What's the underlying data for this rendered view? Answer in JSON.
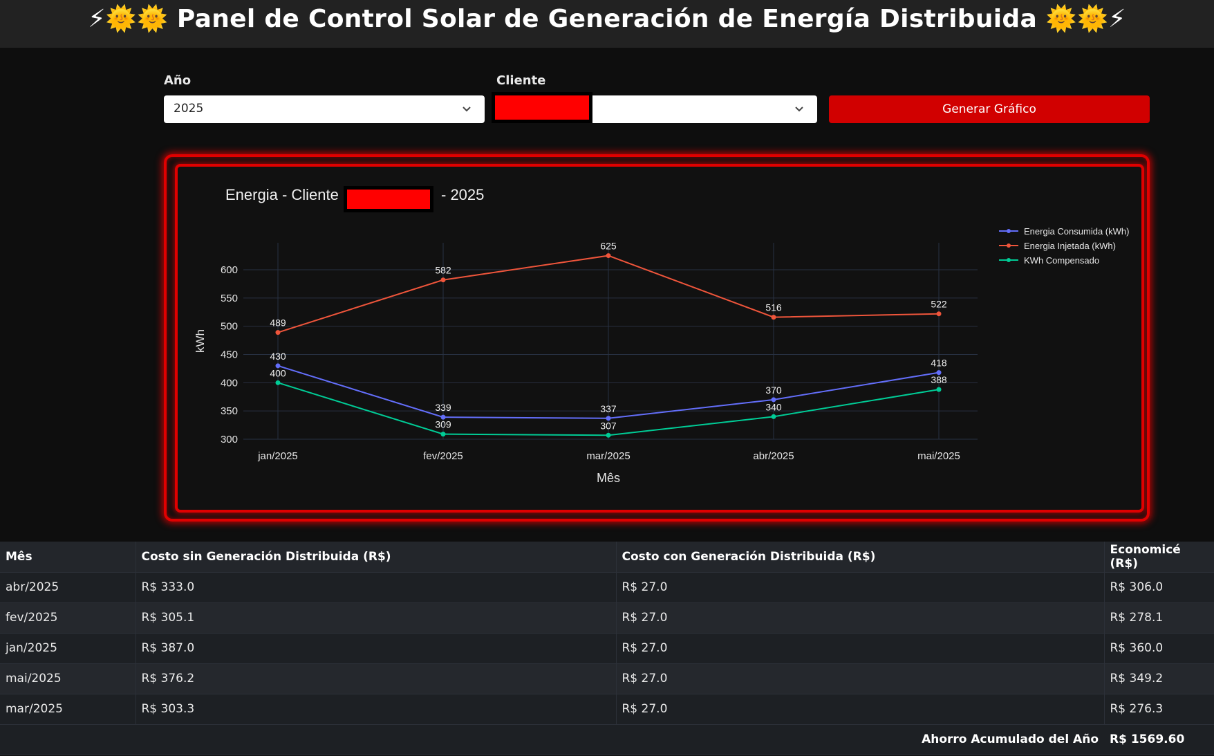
{
  "header": {
    "title": "⚡🌞🌞 Panel de Control Solar de Generación de Energía Distribuida 🌞🌞⚡"
  },
  "filters": {
    "year_label": "Año",
    "year_value": "2025",
    "client_label": "Cliente",
    "client_value": "",
    "generate_button": "Generar Gráfico"
  },
  "colors": {
    "accent_red": "#d10000",
    "consumed": "#636efa",
    "injected": "#ef553b",
    "compensated": "#00cc96"
  },
  "chart_data": {
    "type": "line",
    "title_prefix": "Energia - Cliente",
    "title_suffix": "- 2025",
    "xlabel": "Mês",
    "ylabel": "kWh",
    "categories": [
      "jan/2025",
      "fev/2025",
      "mar/2025",
      "abr/2025",
      "mai/2025"
    ],
    "y_ticks": [
      300,
      350,
      400,
      450,
      500,
      550,
      600
    ],
    "ylim": [
      300,
      625
    ],
    "grid": true,
    "legend_position": "top-right",
    "series": [
      {
        "name": "Energia Consumida (kWh)",
        "values": [
          430,
          339,
          337,
          370,
          418
        ],
        "color": "#636efa",
        "label_pos": "above"
      },
      {
        "name": "Energia Injetada (kWh)",
        "values": [
          489,
          582,
          625,
          516,
          522
        ],
        "color": "#ef553b",
        "label_pos": "above"
      },
      {
        "name": "KWh Compensado",
        "values": [
          400,
          309,
          307,
          340,
          388
        ],
        "color": "#00cc96",
        "label_pos": "above"
      }
    ]
  },
  "table": {
    "headers": [
      "Mês",
      "Costo sin Generación Distribuida (R$)",
      "Costo con Generación Distribuida (R$)",
      "Economicé (R$)"
    ],
    "rows": [
      [
        "abr/2025",
        "R$ 333.0",
        "R$ 27.0",
        "R$ 306.0"
      ],
      [
        "fev/2025",
        "R$ 305.1",
        "R$ 27.0",
        "R$ 278.1"
      ],
      [
        "jan/2025",
        "R$ 387.0",
        "R$ 27.0",
        "R$ 360.0"
      ],
      [
        "mai/2025",
        "R$ 376.2",
        "R$ 27.0",
        "R$ 349.2"
      ],
      [
        "mar/2025",
        "R$ 303.3",
        "R$ 27.0",
        "R$ 276.3"
      ]
    ],
    "total_label": "Ahorro Acumulado del Año",
    "total_value": "R$ 1569.60"
  }
}
